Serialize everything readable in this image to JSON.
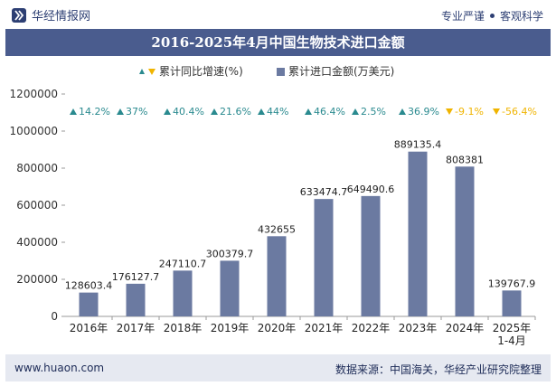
{
  "header": {
    "brand_name": "华经情报网",
    "tagline_left": "专业严谨",
    "tagline_right": "客观科学"
  },
  "footer": {
    "website": "www.huaon.com",
    "source": "数据来源：中国海关，华经产业研究院整理"
  },
  "colors": {
    "bar": "#6b7aa1",
    "up": "#2a8a8f",
    "down": "#f0b400",
    "title_bg": "#4a5c8e"
  },
  "chart_data": {
    "type": "bar",
    "title": "2016-2025年4月中国生物技术进口金额",
    "categories": [
      "2016年",
      "2017年",
      "2018年",
      "2019年",
      "2020年",
      "2021年",
      "2022年",
      "2023年",
      "2024年",
      "2025年\n1-4月"
    ],
    "ylim": [
      0,
      1200000
    ],
    "yticks": [
      "0",
      "200000",
      "400000",
      "600000",
      "800000",
      "1000000",
      "1200000"
    ],
    "legend": {
      "growth": "累计同比增速(%)",
      "amount": "累计进口金额(万美元)",
      "position": "top-center"
    },
    "series": [
      {
        "name": "累计进口金额(万美元)",
        "values": [
          128603.4,
          176127.7,
          247110.7,
          300379.7,
          432655,
          633474.7,
          649490.6,
          889135.4,
          808381,
          139767.9
        ],
        "labels": [
          "128603.4",
          "176127.7",
          "247110.7",
          "300379.7",
          "432655",
          "633474.7",
          "649490.6",
          "889135.4",
          "808381",
          "139767.9"
        ]
      },
      {
        "name": "累计同比增速(%)",
        "values": [
          14.2,
          37,
          40.4,
          21.6,
          44,
          46.4,
          2.5,
          36.9,
          -9.1,
          -56.4
        ],
        "labels": [
          "14.2%",
          "37%",
          "40.4%",
          "21.6%",
          "44%",
          "46.4%",
          "2.5%",
          "36.9%",
          "-9.1%",
          "-56.4%"
        ]
      }
    ]
  }
}
